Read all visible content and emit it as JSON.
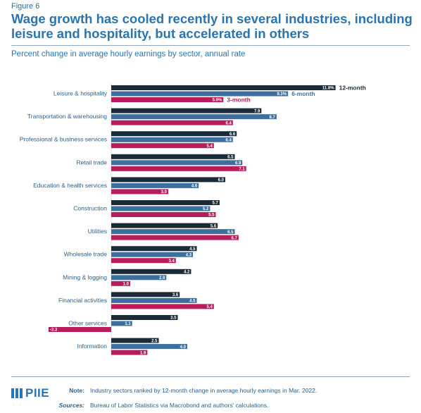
{
  "figure_label": "Figure 6",
  "title": "Wage growth has cooled recently in several industries, including leisure and hospitality, but accelerated in others",
  "subtitle": "Percent change in average hourly earnings by sector, annual rate",
  "colors": {
    "12-month": "#1b2a38",
    "6-month": "#3d6f9e",
    "3-month": "#b81c5a",
    "title": "#2a74b0"
  },
  "chart_data": {
    "type": "bar",
    "orientation": "horizontal",
    "categories": [
      "Leisure & hospitality",
      "Transportation & warehousing",
      "Professional & business services",
      "Retail trade",
      "Education & health services",
      "Construction",
      "Utilities",
      "Wholesale trade",
      "Mining & logging",
      "Financial activities",
      "Other services",
      "Information"
    ],
    "series": [
      {
        "name": "12-month",
        "values": [
          11.8,
          7.9,
          6.6,
          6.5,
          6.0,
          5.7,
          5.6,
          4.5,
          4.2,
          3.6,
          3.5,
          2.5
        ],
        "labels": [
          "11.8%",
          "7.9",
          "6.6",
          "6.5",
          "6.0",
          "5.7",
          "5.6",
          "4.5",
          "4.2",
          "3.6",
          "3.5",
          "2.5"
        ]
      },
      {
        "name": "6-month",
        "values": [
          9.3,
          8.7,
          6.4,
          6.9,
          4.6,
          5.2,
          6.5,
          4.3,
          2.9,
          4.5,
          1.1,
          4.0
        ],
        "labels": [
          "9.3%",
          "8.7",
          "6.4",
          "6.9",
          "4.6",
          "5.2",
          "6.5",
          "4.3",
          "2.9",
          "4.5",
          "1.1",
          "4.0"
        ]
      },
      {
        "name": "3-month",
        "values": [
          5.9,
          6.4,
          5.4,
          7.1,
          3.0,
          5.5,
          6.7,
          3.4,
          1.0,
          5.4,
          -3.3,
          1.9
        ],
        "labels": [
          "5.9%",
          "6.4",
          "5.4",
          "7.1",
          "3.0",
          "5.5",
          "6.7",
          "3.4",
          "1.0",
          "5.4",
          "-3.3",
          "1.9"
        ]
      }
    ],
    "legend_placement": "inline at first category",
    "grid": false
  },
  "footer": {
    "logo_text": "PIIE",
    "note_label": "Note:",
    "note_text": "Industry sectors ranked by 12-month change in average hourly earnings in Mar. 2022.",
    "sources_label": "Sources:",
    "sources_text": "Bureau of Labor Statistics via Macrobond and authors' calculations."
  }
}
